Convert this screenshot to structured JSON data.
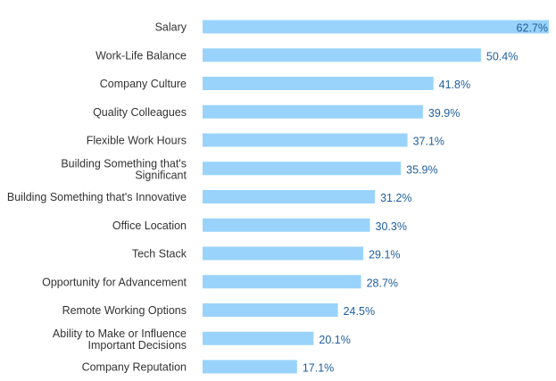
{
  "chart_data": {
    "type": "bar",
    "orientation": "horizontal",
    "categories": [
      "Salary",
      "Work-Life Balance",
      "Company Culture",
      "Quality Colleagues",
      "Flexible Work Hours",
      "Building Something that's Significant",
      "Building Something that's Innovative",
      "Office Location",
      "Tech Stack",
      "Opportunity for Advancement",
      "Remote Working Options",
      "Ability to Make or Influence Important Decisions",
      "Company Reputation"
    ],
    "values": [
      62.7,
      50.4,
      41.8,
      39.9,
      37.1,
      35.9,
      31.2,
      30.3,
      29.1,
      28.7,
      24.5,
      20.1,
      17.1
    ],
    "value_labels": [
      "62.7%",
      "50.4%",
      "41.8%",
      "39.9%",
      "37.1%",
      "35.9%",
      "31.2%",
      "30.3%",
      "29.1%",
      "28.7%",
      "24.5%",
      "20.1%",
      "17.1%"
    ],
    "unit": "%",
    "xlim": [
      0,
      62.7
    ],
    "grid": false,
    "legend": "none",
    "colors": {
      "bar": "#99d3fb",
      "value_label": "#1f5f9e",
      "category_label": "#333333"
    }
  }
}
